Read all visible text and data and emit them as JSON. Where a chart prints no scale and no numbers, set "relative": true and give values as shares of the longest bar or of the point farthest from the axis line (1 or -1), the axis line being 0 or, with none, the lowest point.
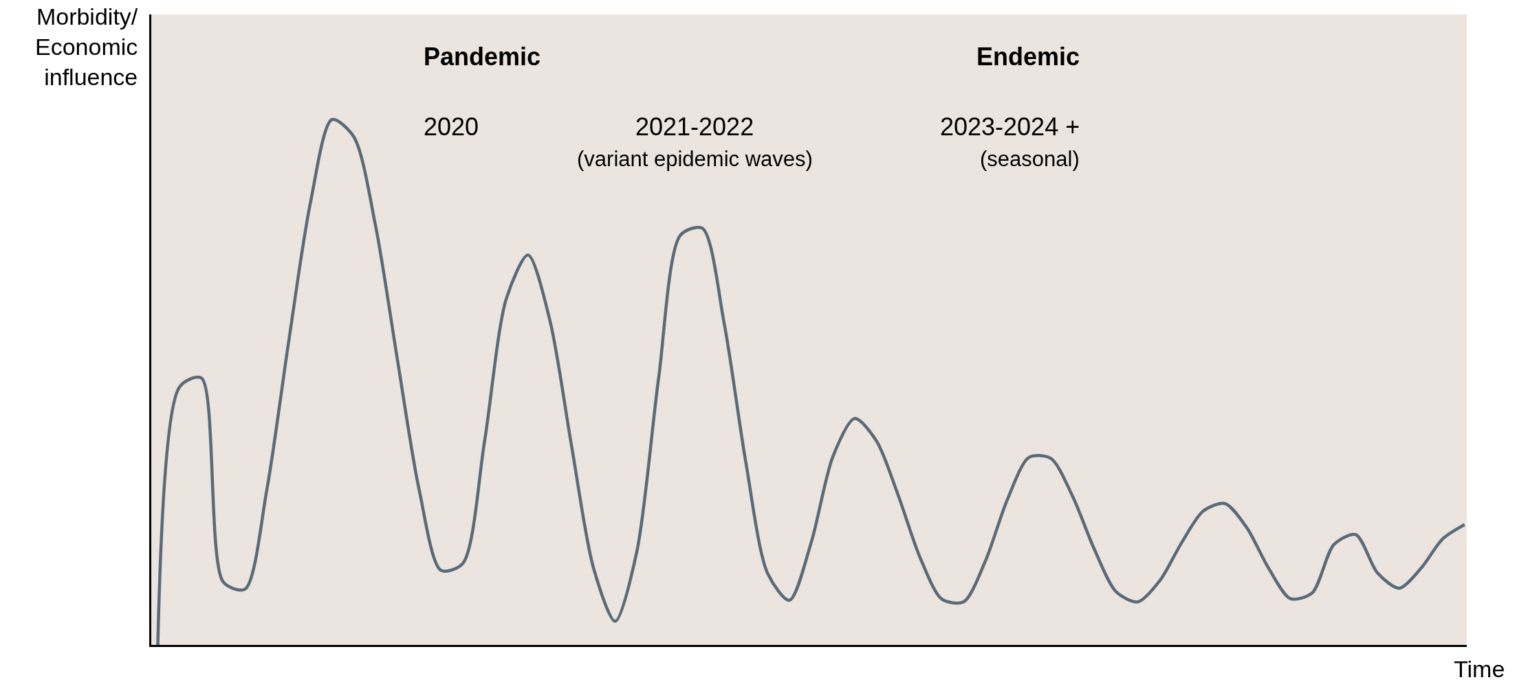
{
  "chart_data": {
    "type": "line",
    "relative": true,
    "xlabel": "Time",
    "ylabel": "Morbidity/\nEconomic\ninfluence",
    "categories": [
      null,
      null,
      null,
      null,
      null,
      null,
      null,
      null,
      null,
      null,
      null,
      null,
      null,
      null,
      null,
      null,
      null,
      null,
      null,
      null,
      null,
      null,
      null,
      null,
      null,
      null,
      null,
      null,
      null,
      null,
      null,
      null,
      null,
      null,
      null,
      null,
      null,
      null,
      null,
      null,
      null,
      null,
      null,
      null,
      null,
      null,
      null,
      null,
      null,
      null,
      null,
      null,
      null,
      null,
      null,
      null,
      null,
      null,
      null,
      null,
      null
    ],
    "series": [
      {
        "color": "#5a6b78",
        "values": [
          0,
          0.491,
          0.508,
          0.12,
          0.106,
          0.294,
          0.575,
          0.84,
          1.0,
          0.967,
          0.797,
          0.543,
          0.295,
          0.142,
          0.155,
          0.387,
          0.659,
          0.742,
          0.618,
          0.378,
          0.147,
          0.045,
          0.179,
          0.51,
          0.78,
          0.793,
          0.613,
          0.347,
          0.136,
          0.085,
          0.195,
          0.359,
          0.431,
          0.388,
          0.284,
          0.166,
          0.087,
          0.082,
          0.16,
          0.276,
          0.357,
          0.355,
          0.283,
          0.182,
          0.101,
          0.082,
          0.122,
          0.194,
          0.255,
          0.269,
          0.223,
          0.146,
          0.088,
          0.099,
          0.191,
          0.21,
          0.137,
          0.108,
          0.146,
          0.202,
          0.229
        ]
      }
    ],
    "annotations": [
      "Pandemic",
      "Endemic",
      "2020",
      "2021-2022",
      "(variant epidemic waves)",
      "2023-2024 +",
      "(seasonal)"
    ],
    "grid": false,
    "legend": false,
    "marker": "none",
    "line_style": "solid"
  }
}
